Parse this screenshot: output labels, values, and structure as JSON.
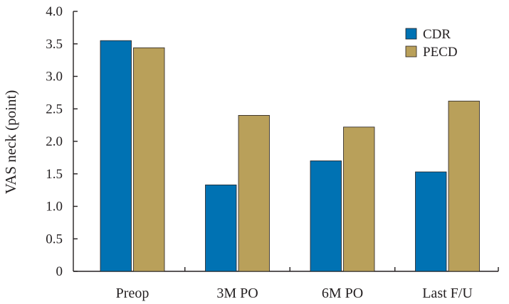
{
  "chart_data": {
    "type": "bar",
    "title": "",
    "xlabel": "",
    "ylabel": "VAS neck (point)",
    "ylim": [
      0,
      4.0
    ],
    "yticks": [
      "0",
      "0.5",
      "1.0",
      "1.5",
      "2.0",
      "2.5",
      "3.0",
      "3.5",
      "4.0"
    ],
    "categories": [
      "Preop",
      "3M PO",
      "6M PO",
      "Last F/U"
    ],
    "series": [
      {
        "name": "CDR",
        "color": "#0072b3",
        "values": [
          3.55,
          1.33,
          1.7,
          1.53
        ]
      },
      {
        "name": "PECD",
        "color": "#b9a05a",
        "values": [
          3.44,
          2.4,
          2.22,
          2.62
        ]
      }
    ],
    "legend": "top-right",
    "grid": false
  }
}
